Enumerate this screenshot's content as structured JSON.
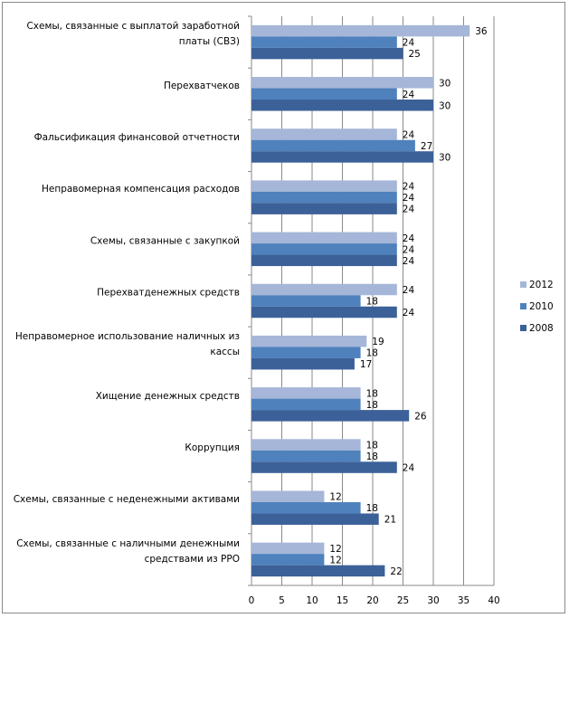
{
  "chart_data": {
    "type": "bar",
    "orientation": "horizontal",
    "categories": [
      "Схемы, связанные с выплатой заработной платы (СВЗ)",
      "Перехватчеков",
      "Фальсификация финансовой отчетности",
      "Неправомерная компенсация расходов",
      "Схемы, связанные с закупкой",
      "Перехватденежных средств",
      "Неправомерное использование наличных из кассы",
      "Хищение денежных средств",
      "Коррупция",
      "Схемы, связанные с неденежными активами",
      "Схемы, связанные с наличными денежными средствами из РРО"
    ],
    "category_lines": [
      [
        "Схемы, связанные с выплатой заработной",
        "платы (СВЗ)"
      ],
      [
        "Перехватчеков"
      ],
      [
        "Фальсификация финансовой отчетности"
      ],
      [
        "Неправомерная компенсация расходов"
      ],
      [
        "Схемы, связанные с закупкой"
      ],
      [
        "Перехватденежных средств"
      ],
      [
        "Неправомерное использование наличных из",
        "кассы"
      ],
      [
        "Хищение денежных средств"
      ],
      [
        "Коррупция"
      ],
      [
        "Схемы, связанные с неденежными активами"
      ],
      [
        "Схемы, связанные с наличными денежными",
        "средствами из РРО"
      ]
    ],
    "series": [
      {
        "name": "2012",
        "color": "#a5b6d8",
        "values": [
          36,
          30,
          24,
          24,
          24,
          24,
          19,
          18,
          18,
          12,
          12
        ]
      },
      {
        "name": "2010",
        "color": "#4f81bd",
        "values": [
          24,
          24,
          27,
          24,
          24,
          18,
          18,
          18,
          18,
          18,
          12
        ]
      },
      {
        "name": "2008",
        "color": "#3c6199",
        "values": [
          25,
          30,
          30,
          24,
          24,
          24,
          17,
          26,
          24,
          21,
          22
        ]
      }
    ],
    "xlim": [
      0,
      40
    ],
    "xticks": [
      0,
      5,
      10,
      15,
      20,
      25,
      30,
      35,
      40
    ],
    "grid": true,
    "legend_position": "right",
    "title": "",
    "xlabel": "",
    "ylabel": ""
  }
}
